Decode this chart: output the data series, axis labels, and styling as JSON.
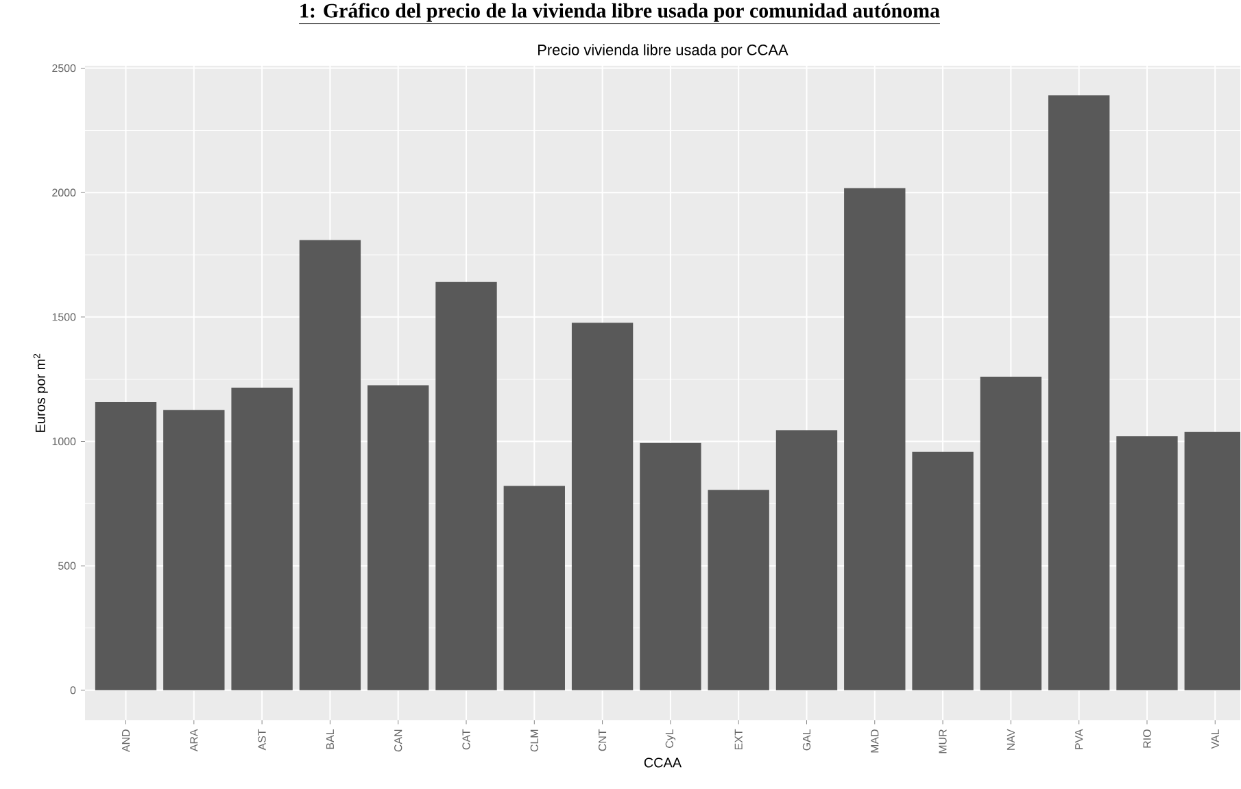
{
  "chart_data": {
    "type": "bar",
    "title": "Precio vivienda libre usada por CCAA",
    "annotations": [
      "1: Gráfico del precio de la vivienda libre usada por comunidad autónoma"
    ],
    "xlabel": "CCAA",
    "ylabel": "Euros por m$^{2}$",
    "categories": [
      "AND",
      "ARA",
      "AST",
      "BAL",
      "CAN",
      "CAT",
      "CLM",
      "CNT",
      "CyL",
      "EXT",
      "GAL",
      "MAD",
      "MUR",
      "NAV",
      "PVA",
      "RIO",
      "VAL"
    ],
    "values": [
      1158,
      1126,
      1216,
      1809,
      1226,
      1641,
      821,
      1477,
      994,
      805,
      1045,
      2018,
      958,
      1260,
      2391,
      1021,
      1038
    ],
    "color": "#595959",
    "ylim": [
      -120,
      2510
    ],
    "yticks": [
      0,
      500,
      1000,
      1500,
      2000,
      2500
    ],
    "grid": true
  }
}
